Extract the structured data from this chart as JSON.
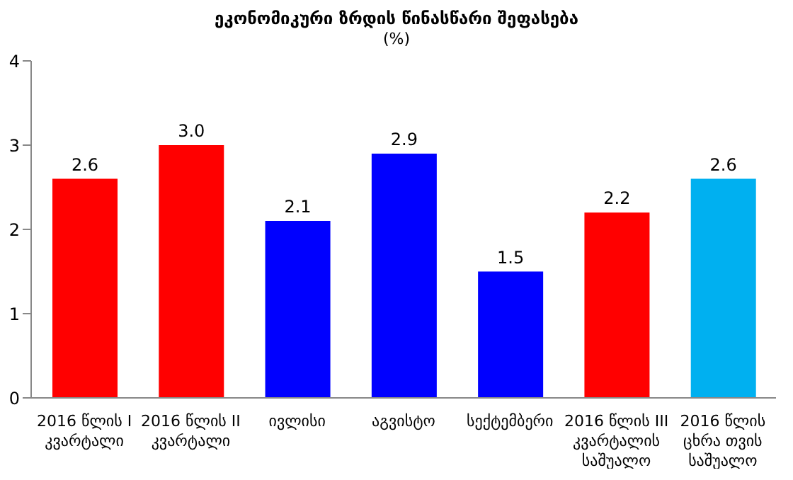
{
  "chart_data": {
    "type": "bar",
    "title": "ეკონომიკური ზრდის წინასწარი შეფასება",
    "subtitle": "(%)",
    "categories": [
      "2016 წლის I კვარტალი",
      "2016 წლის II კვარტალი",
      "ივლისი",
      "აგვისტო",
      "სექტემბერი",
      "2016 წლის III კვარტალის საშუალო",
      "2016 წლის ცხრა თვის საშუალო"
    ],
    "values": [
      2.6,
      3.0,
      2.1,
      2.9,
      1.5,
      2.2,
      2.6
    ],
    "value_labels": [
      "2.6",
      "3.0",
      "2.1",
      "2.9",
      "1.5",
      "2.2",
      "2.6"
    ],
    "colors": [
      "#ff0000",
      "#ff0000",
      "#0000ff",
      "#0000ff",
      "#0000ff",
      "#ff0000",
      "#00b0f0"
    ],
    "ylim": [
      0,
      4
    ],
    "yticks": [
      0,
      1,
      2,
      3,
      4
    ]
  }
}
